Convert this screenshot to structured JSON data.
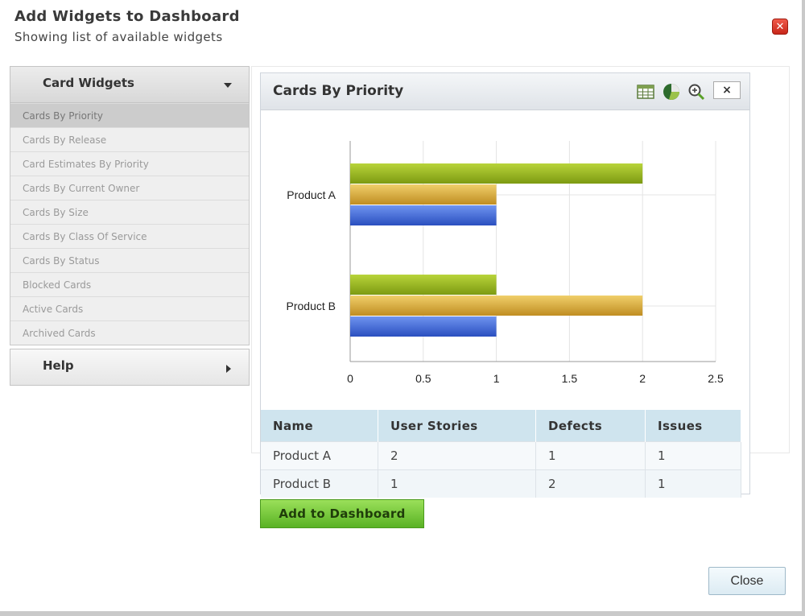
{
  "dialog": {
    "title": "Add Widgets to Dashboard",
    "subtitle": "Showing list of available widgets",
    "close_icon": "close-x-icon",
    "close_label": "Close",
    "add_label": "Add to Dashboard"
  },
  "sidebar": {
    "card_widgets_label": "Card Widgets",
    "help_label": "Help",
    "items": [
      "Cards By Priority",
      "Cards By Release",
      "Card Estimates By Priority",
      "Cards By Current Owner",
      "Cards By Size",
      "Cards By Class Of Service",
      "Cards By Status",
      "Blocked Cards",
      "Active Cards",
      "Archived Cards"
    ],
    "active_index": 0
  },
  "widget": {
    "title": "Cards By Priority",
    "icons": [
      "table-icon",
      "pie-chart-icon",
      "zoom-icon",
      "close-icon"
    ],
    "close_glyph": "×"
  },
  "chart_data": {
    "type": "bar",
    "orientation": "horizontal",
    "categories": [
      "Product A",
      "Product B"
    ],
    "series": [
      {
        "values": [
          2,
          1
        ],
        "color": "#9dbb1f"
      },
      {
        "values": [
          1,
          2
        ],
        "color": "#d9ad3c"
      },
      {
        "values": [
          1,
          1
        ],
        "color": "#3f66d6"
      }
    ],
    "xlim": [
      0,
      2.5
    ],
    "xticks": [
      "0",
      "0.5",
      "1",
      "1.5",
      "2",
      "2.5"
    ],
    "grid": true
  },
  "table": {
    "headers": [
      "Name",
      "User Stories",
      "Defects",
      "Issues"
    ],
    "rows": [
      [
        "Product A",
        "2",
        "1",
        "1"
      ],
      [
        "Product B",
        "1",
        "2",
        "1"
      ]
    ]
  }
}
